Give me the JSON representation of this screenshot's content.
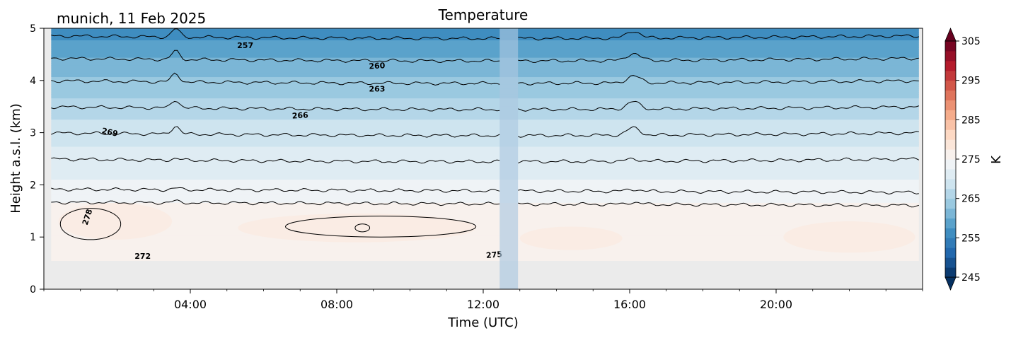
{
  "chart_data": {
    "type": "heatmap",
    "title": "Temperature",
    "subtitle": "munich, 11 Feb 2025",
    "xlabel": "Time (UTC)",
    "ylabel": "Height a.s.l. (km)",
    "xlim": [
      0,
      24
    ],
    "ylim": [
      0,
      5
    ],
    "x_ticks": [
      {
        "value": 4,
        "label": "04:00"
      },
      {
        "value": 8,
        "label": "08:00"
      },
      {
        "value": 12,
        "label": "12:00"
      },
      {
        "value": 16,
        "label": "16:00"
      },
      {
        "value": 20,
        "label": "20:00"
      }
    ],
    "y_ticks": [
      {
        "value": 0,
        "label": "0"
      },
      {
        "value": 1,
        "label": "1"
      },
      {
        "value": 2,
        "label": "2"
      },
      {
        "value": 3,
        "label": "3"
      },
      {
        "value": 4,
        "label": "4"
      },
      {
        "value": 5,
        "label": "5"
      }
    ],
    "colorbar": {
      "label": "K",
      "range": [
        245,
        305
      ],
      "ticks": [
        {
          "value": 305,
          "label": "305"
        },
        {
          "value": 295,
          "label": "295"
        },
        {
          "value": 285,
          "label": "285"
        },
        {
          "value": 275,
          "label": "275"
        },
        {
          "value": 265,
          "label": "265"
        },
        {
          "value": 255,
          "label": "255"
        },
        {
          "value": 245,
          "label": "245"
        }
      ],
      "colormap": "RdBu_r",
      "extend": "both"
    },
    "data_coverage": {
      "time_range": [
        0.2,
        23.9
      ],
      "height_range": [
        0.55,
        5.0
      ],
      "gap": [
        12.45,
        12.95
      ]
    },
    "contour_levels": [
      257,
      260,
      263,
      266,
      269,
      272,
      275,
      278
    ],
    "contour_labels": [
      {
        "text": "257",
        "x": 5.5,
        "y": 4.66,
        "rotate": 0
      },
      {
        "text": "260",
        "x": 9.1,
        "y": 4.27,
        "rotate": -3
      },
      {
        "text": "263",
        "x": 9.1,
        "y": 3.83,
        "rotate": 0
      },
      {
        "text": "266",
        "x": 7.0,
        "y": 3.32,
        "rotate": -3
      },
      {
        "text": "269",
        "x": 1.8,
        "y": 3.0,
        "rotate": 12
      },
      {
        "text": "272",
        "x": 2.7,
        "y": 0.62,
        "rotate": 0
      },
      {
        "text": "275",
        "x": 12.3,
        "y": 0.65,
        "rotate": -5
      },
      {
        "text": "278",
        "x": 1.2,
        "y": 1.38,
        "rotate": -72
      }
    ],
    "temperature_profile_K": [
      {
        "height_km": 0.55,
        "value": 276
      },
      {
        "height_km": 1.0,
        "value": 277.5
      },
      {
        "height_km": 1.5,
        "value": 276
      },
      {
        "height_km": 2.0,
        "value": 273
      },
      {
        "height_km": 2.5,
        "value": 271
      },
      {
        "height_km": 3.0,
        "value": 269
      },
      {
        "height_km": 3.5,
        "value": 266
      },
      {
        "height_km": 4.0,
        "value": 263
      },
      {
        "height_km": 4.5,
        "value": 259.5
      },
      {
        "height_km": 5.0,
        "value": 256
      }
    ],
    "background_color": "#ebebeb",
    "gap_color": "#aac8e0"
  }
}
